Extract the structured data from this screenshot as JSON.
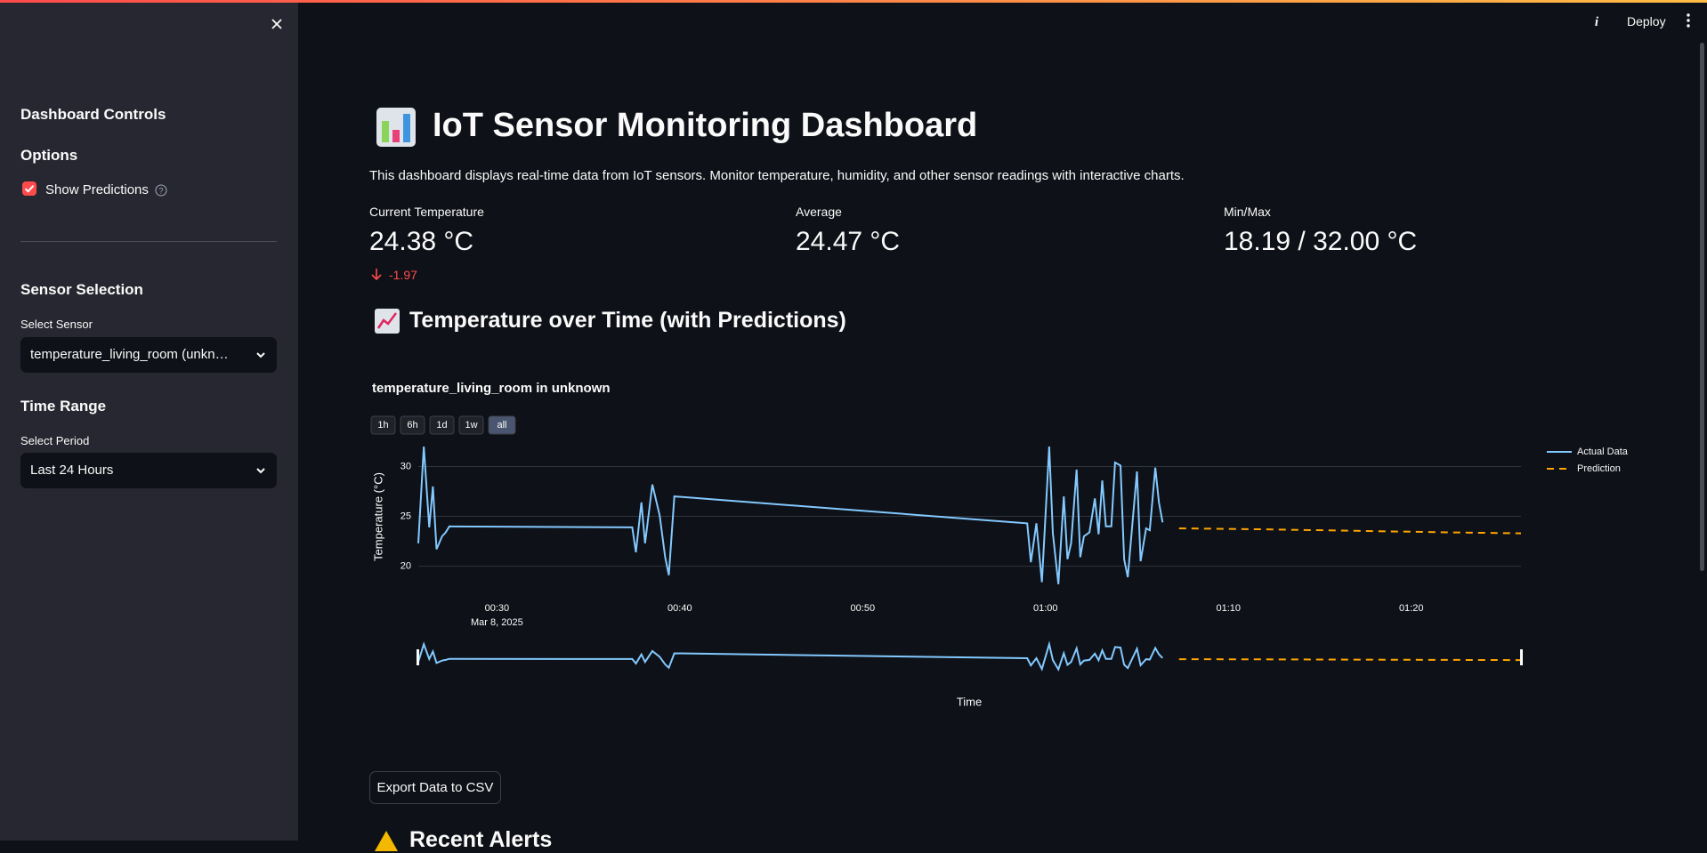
{
  "header": {
    "deploy": "Deploy"
  },
  "sidebar": {
    "title": "Dashboard Controls",
    "options_heading": "Options",
    "show_predictions": "Show Predictions",
    "show_predictions_checked": true,
    "sensor_heading": "Sensor Selection",
    "sensor_label": "Select Sensor",
    "sensor_value": "temperature_living_room (unkn…",
    "time_heading": "Time Range",
    "period_label": "Select Period",
    "period_value": "Last 24 Hours"
  },
  "main": {
    "title": "IoT Sensor Monitoring Dashboard",
    "description": "This dashboard displays real-time data from IoT sensors. Monitor temperature, humidity, and other sensor readings with interactive charts.",
    "metrics": [
      {
        "label": "Current Temperature",
        "value": "24.38 °C",
        "delta": "-1.97"
      },
      {
        "label": "Average",
        "value": "24.47 °C"
      },
      {
        "label": "Min/Max",
        "value": "18.19 / 32.00 °C"
      }
    ],
    "chart_heading": "Temperature over Time (with Predictions)",
    "export_button": "Export Data to CSV",
    "alerts_heading": "Recent Alerts"
  },
  "chart_data": {
    "type": "line",
    "title": "temperature_living_room in unknown",
    "range_buttons": [
      "1h",
      "6h",
      "1d",
      "1w",
      "all"
    ],
    "active_range_button": 4,
    "x_label": "Time",
    "y_label": "Temperature (°C)",
    "x_date_label": "Mar 8, 2025",
    "xlim": [
      25.7,
      86.0
    ],
    "ylim": [
      18.0,
      32.1
    ],
    "xticks": [
      {
        "value": 30,
        "label": "00:30"
      },
      {
        "value": 40,
        "label": "00:40"
      },
      {
        "value": 50,
        "label": "00:50"
      },
      {
        "value": 60,
        "label": "01:00"
      },
      {
        "value": 70,
        "label": "01:10"
      },
      {
        "value": 80,
        "label": "01:20"
      }
    ],
    "yticks": [
      20,
      25,
      30
    ],
    "grid": true,
    "legend": "right",
    "range_slider": true,
    "series": [
      {
        "name": "Actual Data",
        "color": "#83c9ff",
        "line_style": "solid",
        "x": [
          25.7,
          26.0,
          26.3,
          26.5,
          26.7,
          27.0,
          27.2,
          27.4,
          37.4,
          37.6,
          37.9,
          38.1,
          38.5,
          38.9,
          39.2,
          39.4,
          39.7,
          59.0,
          59.2,
          59.5,
          59.8,
          60.2,
          60.4,
          60.7,
          61.0,
          61.2,
          61.4,
          61.7,
          61.9,
          62.1,
          62.4,
          62.7,
          62.9,
          63.1,
          63.3,
          63.6,
          63.8,
          64.1,
          64.3,
          64.5,
          64.8,
          65.0,
          65.2,
          65.5,
          65.7,
          66.0,
          66.2,
          66.4
        ],
        "values": [
          22.3,
          32.0,
          23.9,
          28.0,
          21.7,
          23.0,
          23.4,
          24.0,
          23.9,
          21.4,
          26.4,
          22.3,
          28.2,
          25.1,
          20.9,
          19.1,
          27.0,
          24.3,
          20.4,
          24.3,
          18.4,
          32.0,
          23.3,
          18.2,
          27.0,
          20.7,
          22.3,
          29.7,
          20.9,
          23.0,
          23.4,
          26.8,
          23.2,
          28.6,
          24.0,
          24.0,
          30.4,
          30.1,
          20.7,
          18.9,
          25.3,
          29.5,
          20.5,
          23.8,
          23.6,
          29.9,
          26.4,
          24.4
        ]
      },
      {
        "name": "Prediction",
        "color": "#ffa500",
        "line_style": "dashed",
        "x": [
          67.3,
          72.0,
          77.0,
          82.0,
          86.0
        ],
        "values": [
          23.8,
          23.7,
          23.55,
          23.4,
          23.3
        ]
      }
    ]
  }
}
